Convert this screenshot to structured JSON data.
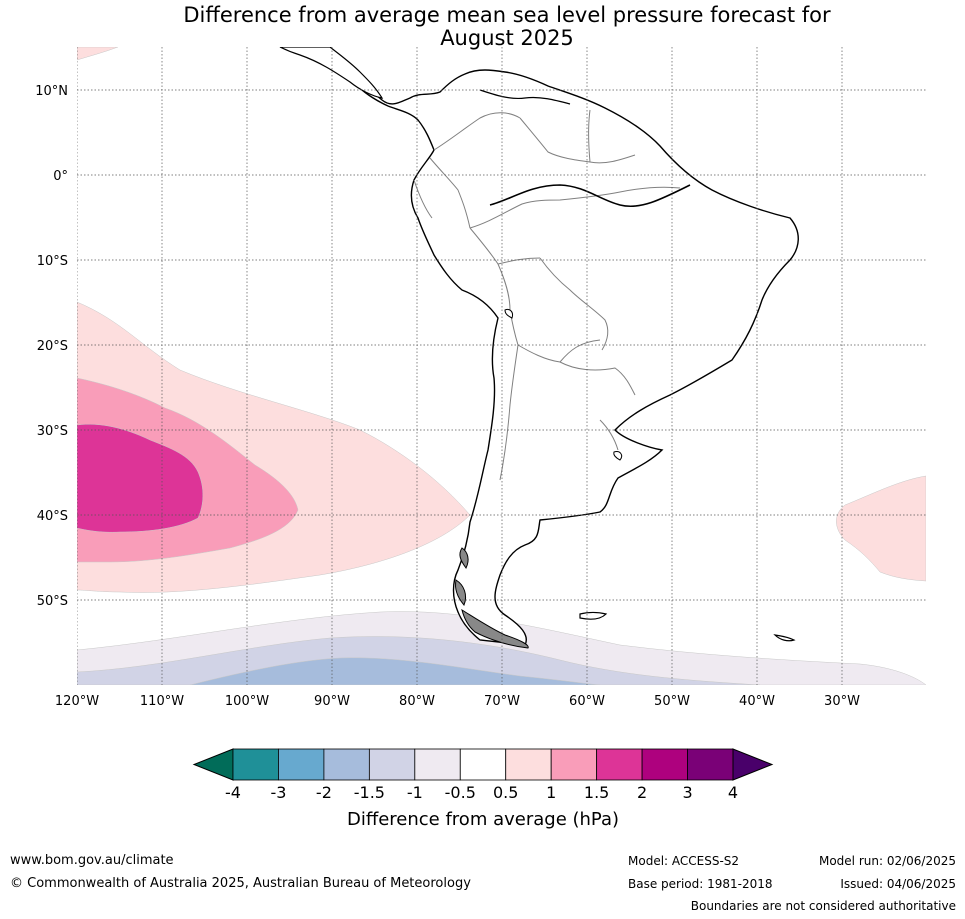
{
  "title": {
    "line1": "Difference from average mean sea level pressure forecast for",
    "line2": "August 2025"
  },
  "map": {
    "lat_labels": [
      "10°N",
      "0°",
      "10°S",
      "20°S",
      "30°S",
      "40°S",
      "50°S"
    ],
    "lon_labels": [
      "120°W",
      "110°W",
      "100°W",
      "90°W",
      "80°W",
      "70°W",
      "60°W",
      "50°W",
      "40°W",
      "30°W"
    ],
    "colors": {
      "land_border": "#000000",
      "country_border": "#808080",
      "grid": "#555555",
      "pos_0_5_1": "#fddede",
      "pos_1_1_5": "#f99db9",
      "pos_1_5_2": "#dd3497",
      "neg_0_5_1": "#efeaf1",
      "neg_1_1_5": "#d1d3e6",
      "neg_1_5_2": "#a6bcdc"
    }
  },
  "colorbar": {
    "title": "Difference from average (hPa)",
    "labels": [
      "-4",
      "-3",
      "-2",
      "-1.5",
      "-1",
      "-0.5",
      "0.5",
      "1",
      "1.5",
      "2",
      "3",
      "4"
    ],
    "colors": [
      "#016c59",
      "#1f9098",
      "#67a9cf",
      "#a6bcdc",
      "#d1d3e6",
      "#efeaf1",
      "#ffffff",
      "#fddede",
      "#f99db9",
      "#dd3497",
      "#ae017e",
      "#7a0177",
      "#49006a"
    ]
  },
  "footer": {
    "url": "www.bom.gov.au/climate",
    "copyright": "© Commonwealth of Australia 2025, Australian Bureau of Meteorology",
    "model": "Model: ACCESS-S2",
    "base_period": "Base period: 1981-2018",
    "model_run": "Model run: 02/06/2025",
    "issued": "Issued: 04/06/2025",
    "disclaimer": "Boundaries are not considered authoritative"
  }
}
